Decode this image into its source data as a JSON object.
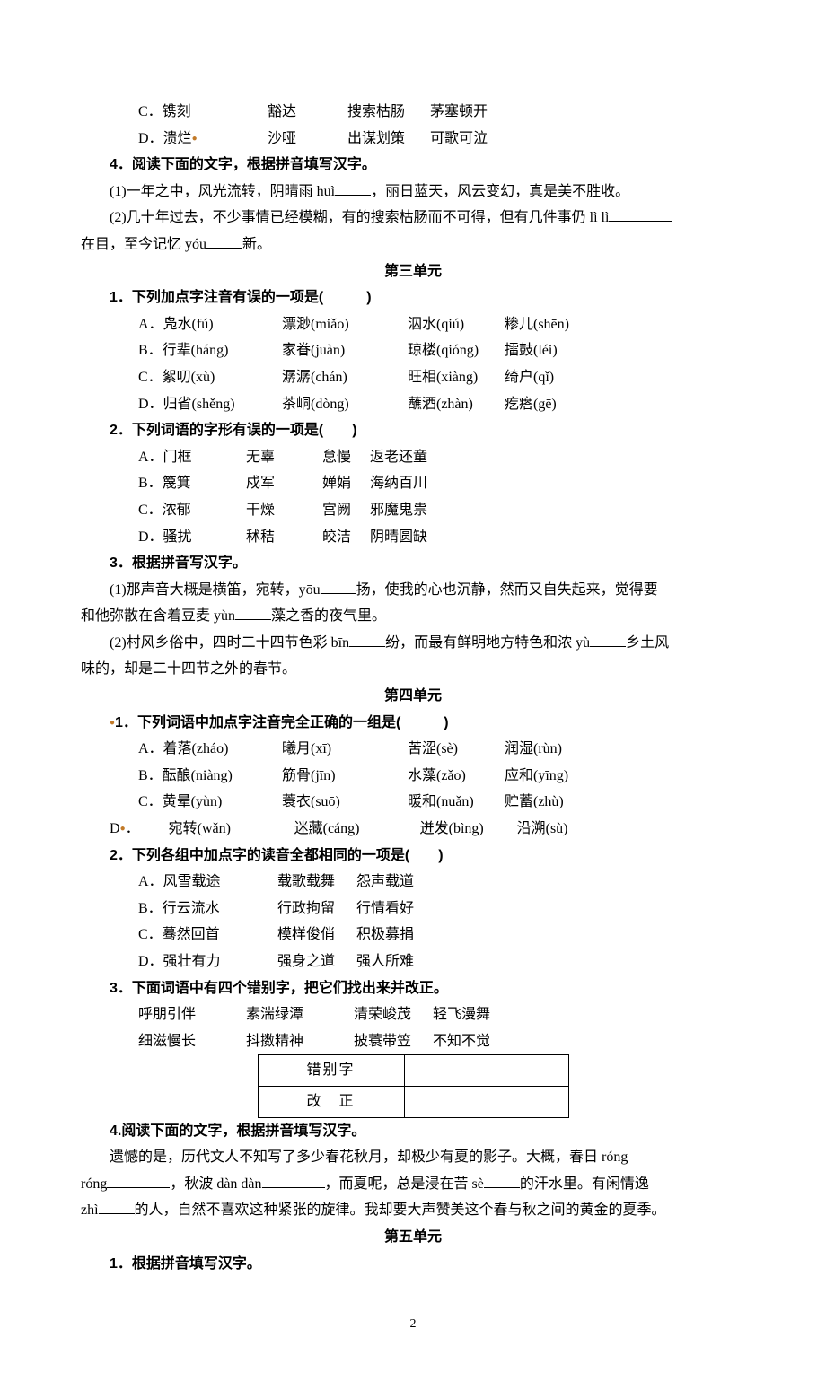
{
  "top_options": {
    "c": [
      "C．镌刻",
      "豁达",
      "搜索枯肠",
      "茅塞顿开"
    ],
    "d": [
      "D．溃烂",
      "沙哑",
      "出谋划策",
      "可歌可泣"
    ]
  },
  "q4": {
    "stem": "4．阅读下面的文字，根据拼音填写汉字。",
    "line1_a": "(1)一年之中，风光流转，阴晴雨 huì",
    "line1_b": "，丽日蓝天，风云变幻，真是美不胜收。",
    "line2_a": "(2)几十年过去，不少事情已经模糊，有的搜索枯肠而不可得，但有几件事仍 lì lì",
    "line3_a": "在目，至今记忆 yóu",
    "line3_b": "新。"
  },
  "unit3": {
    "title": "第三单元",
    "q1": {
      "stem": "1．下列加点字注音有误的一项是(",
      "close": ")",
      "rows": [
        [
          "A．凫水(fú)",
          "漂渺(miǎo)",
          "泅水(qiú)",
          "糁儿(shēn)"
        ],
        [
          "B．行辈(háng)",
          "家眷(juàn)",
          "琼楼(qióng)",
          "擂鼓(léi)"
        ],
        [
          "C．絮叨(xù)",
          "潺潺(chán)",
          "旺相(xiàng)",
          "绮户(qǐ)"
        ],
        [
          "D．归省(shěng)",
          "茶峒(dòng)",
          "蘸酒(zhàn)",
          "疙瘩(gē)"
        ]
      ]
    },
    "q2": {
      "stem": "2．下列词语的字形有误的一项是(",
      "close": ")",
      "rows": [
        [
          "A．门框",
          "无辜",
          "怠慢",
          "返老还童"
        ],
        [
          "B．篾箕",
          "戍军",
          "婵娟",
          "海纳百川"
        ],
        [
          "C．浓郁",
          "干燥",
          "宫阙",
          "邪魔鬼祟"
        ],
        [
          "D．骚扰",
          "秫秸",
          "皎洁",
          "阴晴圆缺"
        ]
      ]
    },
    "q3": {
      "stem": "3．根据拼音写汉字。",
      "l1a": "(1)那声音大概是横笛，宛转，yōu",
      "l1b": "扬，使我的心也沉静，然而又自失起来，觉得要",
      "l2a": "和他弥散在含着豆麦 yùn",
      "l2b": "藻之香的夜气里。",
      "l3a": "(2)村风乡俗中，四时二十四节色彩 bīn",
      "l3b": "纷，而最有鲜明地方特色和浓 yù",
      "l3c": "乡土风",
      "l4": "味的，却是二十四节之外的春节。"
    }
  },
  "unit4": {
    "title": "第四单元",
    "q1": {
      "stem": "1．下列词语中加点字注音完全正确的一组是(",
      "close": ")",
      "rows": [
        [
          "A．着落(zháo)",
          "曦月(xī)",
          "苦涩(sè)",
          "润湿(rùn)"
        ],
        [
          "B．酝酿(niàng)",
          "筋骨(jīn)",
          "水藻(zǎo)",
          "应和(yīng)"
        ],
        [
          "C．黄晕(yùn)",
          "蓑衣(suō)",
          "暖和(nuǎn)",
          "贮蓄(zhù)"
        ],
        [
          "D．宛转(wǎn)",
          "迷藏(cáng)",
          "迸发(bìng)",
          "沿溯(sù)"
        ]
      ]
    },
    "q2": {
      "stem": "2．下列各组中加点字的读音全都相同的一项是(",
      "close": ")",
      "rows": [
        [
          "A．风雪载途",
          "载歌载舞",
          "怨声载道"
        ],
        [
          "B．行云流水",
          "行政拘留",
          "行情看好"
        ],
        [
          "C．蓦然回首",
          "模样俊俏",
          "积极募捐"
        ],
        [
          "D．强壮有力",
          "强身之道",
          "强人所难"
        ]
      ]
    },
    "q3": {
      "stem": "3．下面词语中有四个错别字，把它们找出来并改正。",
      "row1": [
        "呼朋引伴",
        "素湍绿潭",
        "清荣峻茂",
        "轻飞漫舞"
      ],
      "row2": [
        "细滋慢长",
        "抖擞精神",
        "披蓑带笠",
        "不知不觉"
      ],
      "tbl": {
        "r1": "错别字",
        "r2": "改　正"
      }
    },
    "q4": {
      "stem": "4.阅读下面的文字，根据拼音填写汉字。",
      "l1a": "遗憾的是，历代文人不知写了多少春花秋月，却极少有夏的影子。大概，春日 róng",
      "l2a": "róng",
      "l2b": "，秋波 dàn dàn",
      "l2c": "，而夏呢，总是浸在苦 sè",
      "l2d": "的汗水里。有闲情逸",
      "l3a": "zhì",
      "l3b": "的人，自然不喜欢这种紧张的旋律。我却要大声赞美这个春与秋之间的黄金的夏季。"
    }
  },
  "unit5": {
    "title": "第五单元",
    "q1": "1．根据拼音填写汉字。"
  },
  "page": "2"
}
